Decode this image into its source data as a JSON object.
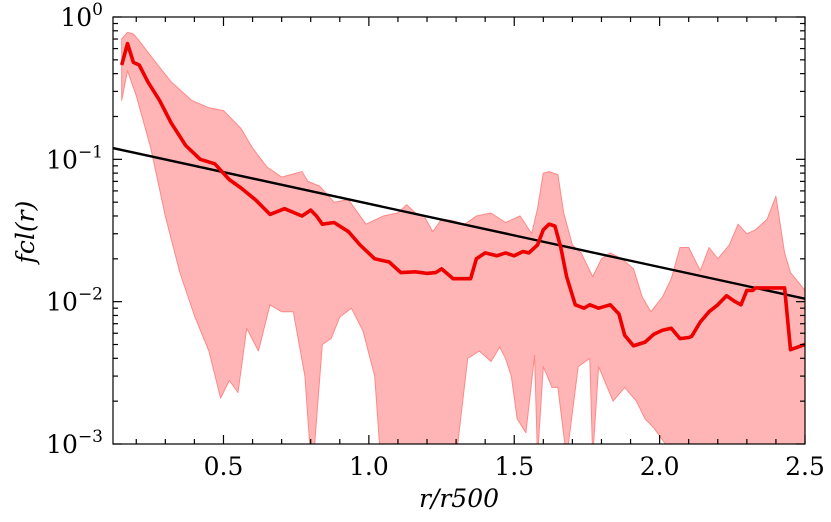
{
  "chart_data": {
    "type": "line",
    "xlabel": "r/r500",
    "ylabel": "fcl(r)",
    "xlim": [
      0.12,
      2.5
    ],
    "ylim": [
      0.001,
      1
    ],
    "yscale": "log",
    "grid": false,
    "x_ticks": [
      {
        "value": 0.5,
        "label": "0.5"
      },
      {
        "value": 1.0,
        "label": "1.0"
      },
      {
        "value": 1.5,
        "label": "1.5"
      },
      {
        "value": 2.0,
        "label": "2.0"
      },
      {
        "value": 2.5,
        "label": "2.5"
      }
    ],
    "y_ticks": [
      {
        "value": 1,
        "base": "10",
        "exp": "0"
      },
      {
        "value": 0.1,
        "base": "10",
        "exp": "−1"
      },
      {
        "value": 0.01,
        "base": "10",
        "exp": "−2"
      },
      {
        "value": 0.001,
        "base": "10",
        "exp": "−3"
      }
    ],
    "colors": {
      "median": "#ee0000",
      "band": "#ff8888",
      "fit": "#000000"
    },
    "series": [
      {
        "role": "median",
        "x": [
          0.15,
          0.17,
          0.19,
          0.21,
          0.24,
          0.28,
          0.32,
          0.37,
          0.42,
          0.47,
          0.52,
          0.56,
          0.61,
          0.66,
          0.71,
          0.77,
          0.8,
          0.82,
          0.84,
          0.88,
          0.93,
          0.97,
          1.02,
          1.07,
          1.11,
          1.16,
          1.2,
          1.23,
          1.25,
          1.29,
          1.31,
          1.35,
          1.37,
          1.4,
          1.44,
          1.47,
          1.5,
          1.53,
          1.55,
          1.58,
          1.6,
          1.62,
          1.64,
          1.66,
          1.68,
          1.71,
          1.74,
          1.76,
          1.79,
          1.83,
          1.86,
          1.88,
          1.91,
          1.95,
          1.98,
          2.01,
          2.04,
          2.07,
          2.1,
          2.11,
          2.14,
          2.17,
          2.2,
          2.23,
          2.26,
          2.28,
          2.3,
          2.32,
          2.33,
          2.37,
          2.41,
          2.43,
          2.45,
          2.5
        ],
        "y": [
          0.46,
          0.65,
          0.48,
          0.46,
          0.35,
          0.26,
          0.18,
          0.125,
          0.1,
          0.093,
          0.072,
          0.063,
          0.052,
          0.041,
          0.045,
          0.04,
          0.044,
          0.04,
          0.035,
          0.036,
          0.031,
          0.025,
          0.02,
          0.019,
          0.016,
          0.0162,
          0.0158,
          0.016,
          0.017,
          0.0145,
          0.0145,
          0.0145,
          0.02,
          0.022,
          0.021,
          0.022,
          0.021,
          0.0225,
          0.022,
          0.025,
          0.032,
          0.035,
          0.034,
          0.024,
          0.015,
          0.0095,
          0.009,
          0.0095,
          0.009,
          0.0095,
          0.0082,
          0.0058,
          0.0049,
          0.0052,
          0.0059,
          0.0063,
          0.0065,
          0.0055,
          0.0056,
          0.0057,
          0.0072,
          0.0085,
          0.0095,
          0.011,
          0.01,
          0.0095,
          0.012,
          0.012,
          0.0125,
          0.0125,
          0.0125,
          0.0125,
          0.0046,
          0.005
        ]
      },
      {
        "role": "band-upper",
        "x": [
          0.15,
          0.17,
          0.19,
          0.21,
          0.26,
          0.32,
          0.39,
          0.45,
          0.5,
          0.56,
          0.6,
          0.65,
          0.7,
          0.77,
          0.79,
          0.83,
          0.88,
          0.93,
          0.99,
          1.05,
          1.1,
          1.13,
          1.16,
          1.19,
          1.22,
          1.25,
          1.29,
          1.33,
          1.37,
          1.42,
          1.47,
          1.52,
          1.56,
          1.58,
          1.6,
          1.62,
          1.65,
          1.67,
          1.7,
          1.73,
          1.77,
          1.8,
          1.83,
          1.87,
          1.91,
          1.94,
          1.97,
          2.01,
          2.04,
          2.07,
          2.1,
          2.14,
          2.17,
          2.2,
          2.24,
          2.27,
          2.3,
          2.33,
          2.37,
          2.4,
          2.43,
          2.45,
          2.5
        ],
        "y": [
          0.7,
          0.78,
          0.76,
          0.68,
          0.5,
          0.35,
          0.26,
          0.23,
          0.22,
          0.165,
          0.12,
          0.088,
          0.075,
          0.082,
          0.07,
          0.065,
          0.05,
          0.052,
          0.035,
          0.04,
          0.042,
          0.048,
          0.042,
          0.04,
          0.031,
          0.038,
          0.037,
          0.035,
          0.04,
          0.042,
          0.036,
          0.04,
          0.03,
          0.045,
          0.08,
          0.082,
          0.078,
          0.042,
          0.025,
          0.022,
          0.015,
          0.02,
          0.022,
          0.02,
          0.017,
          0.0108,
          0.0085,
          0.0108,
          0.0145,
          0.024,
          0.024,
          0.0165,
          0.024,
          0.02,
          0.025,
          0.035,
          0.03,
          0.032,
          0.038,
          0.055,
          0.022,
          0.016,
          0.012
        ]
      },
      {
        "role": "band-lower",
        "x": [
          0.15,
          0.17,
          0.2,
          0.25,
          0.3,
          0.35,
          0.4,
          0.45,
          0.49,
          0.52,
          0.55,
          0.58,
          0.62,
          0.66,
          0.7,
          0.74,
          0.78,
          0.8,
          0.81,
          0.84,
          0.87,
          0.9,
          0.94,
          0.98,
          1.02,
          1.04,
          1.06,
          1.12,
          1.18,
          1.24,
          1.3,
          1.34,
          1.38,
          1.42,
          1.45,
          1.47,
          1.49,
          1.51,
          1.54,
          1.57,
          1.58,
          1.6,
          1.63,
          1.65,
          1.68,
          1.72,
          1.76,
          1.77,
          1.79,
          1.84,
          1.88,
          1.92,
          1.95,
          1.98,
          2.02,
          2.05,
          2.1,
          2.14,
          2.18,
          2.22,
          2.26,
          2.3,
          2.33,
          2.36,
          2.39,
          2.42,
          2.45,
          2.5
        ],
        "y": [
          0.26,
          0.42,
          0.28,
          0.12,
          0.04,
          0.016,
          0.008,
          0.0045,
          0.0021,
          0.0028,
          0.0023,
          0.0065,
          0.0045,
          0.0095,
          0.0085,
          0.0085,
          0.003,
          0.0008,
          0.0008,
          0.005,
          0.0055,
          0.0078,
          0.009,
          0.0062,
          0.003,
          0.0008,
          0.0008,
          0.0008,
          0.0008,
          0.0008,
          0.0008,
          0.004,
          0.0045,
          0.0038,
          0.0048,
          0.004,
          0.003,
          0.0015,
          0.0012,
          0.0042,
          0.0008,
          0.0035,
          0.0025,
          0.0025,
          0.0008,
          0.0035,
          0.004,
          0.0008,
          0.0035,
          0.002,
          0.0025,
          0.002,
          0.0015,
          0.0013,
          0.001,
          0.001,
          0.001,
          0.001,
          0.001,
          0.001,
          0.001,
          0.001,
          0.001,
          0.001,
          0.001,
          0.001,
          0.001,
          0.001
        ]
      },
      {
        "role": "fit",
        "x": [
          0.12,
          2.5
        ],
        "y": [
          0.12,
          0.0105
        ]
      }
    ]
  }
}
